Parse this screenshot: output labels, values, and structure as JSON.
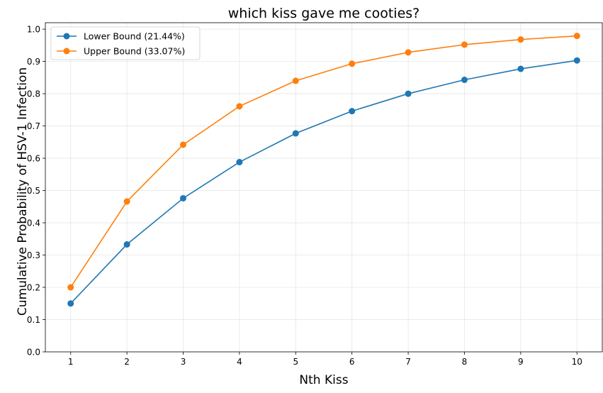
{
  "chart_data": {
    "type": "line",
    "title": "which kiss gave me cooties?",
    "xlabel": "Nth Kiss",
    "ylabel": "Cumulative Probability of HSV-1 Infection",
    "x": [
      1,
      2,
      3,
      4,
      5,
      6,
      7,
      8,
      9,
      10
    ],
    "x_ticks": [
      "1",
      "2",
      "3",
      "4",
      "5",
      "6",
      "7",
      "8",
      "9",
      "10"
    ],
    "ylim": [
      0,
      1.0
    ],
    "y_ticks": [
      "0.0",
      "0.1",
      "0.2",
      "0.3",
      "0.4",
      "0.5",
      "0.6",
      "0.7",
      "0.8",
      "0.9",
      "1.0"
    ],
    "grid": true,
    "legend_position": "top-left",
    "series": [
      {
        "name": "Lower Bound (21.44%)",
        "color": "#1f77b4",
        "marker": "circle",
        "values": [
          0.15,
          0.333,
          0.476,
          0.588,
          0.677,
          0.746,
          0.8,
          0.843,
          0.877,
          0.903
        ]
      },
      {
        "name": "Upper Bound (33.07%)",
        "color": "#ff7f0e",
        "marker": "circle",
        "values": [
          0.2,
          0.466,
          0.642,
          0.761,
          0.84,
          0.893,
          0.928,
          0.952,
          0.968,
          0.979
        ]
      }
    ]
  }
}
